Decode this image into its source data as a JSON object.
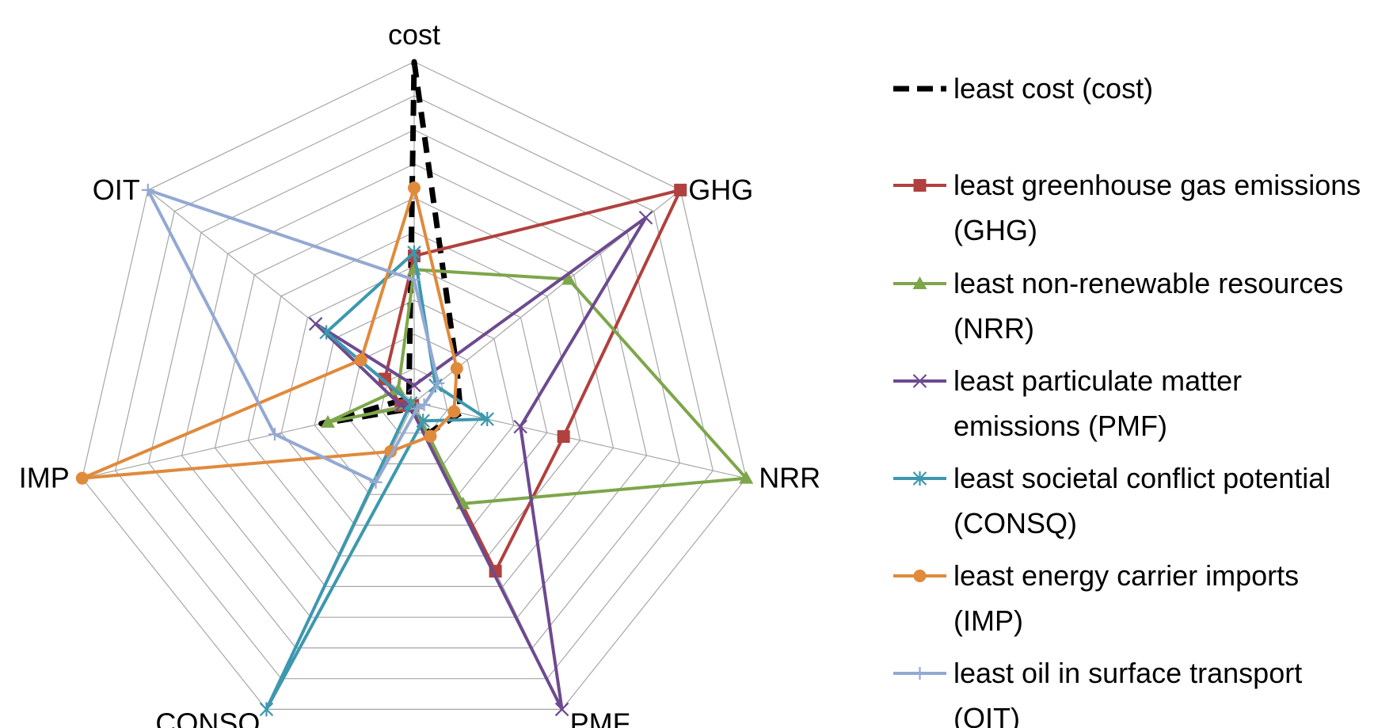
{
  "chart_data": {
    "type": "radar",
    "axes": [
      "cost",
      "GHG",
      "NRR",
      "PMF",
      "CONSQ",
      "IMP",
      "OIT"
    ],
    "rmax": 10,
    "grid_rings": 10,
    "grid": true,
    "legend_position": "right",
    "series": [
      {
        "name": "least cost (cost)",
        "color": "#000000",
        "marker": "none",
        "dash": true,
        "values": [
          10,
          1.6,
          1.4,
          1.0,
          0.2,
          2.8,
          0.2
        ]
      },
      {
        "name": "least greenhouse gas emissions (GHG)",
        "color": "#b0413e",
        "marker": "square",
        "dash": false,
        "values": [
          4.3,
          10,
          4.5,
          5.5,
          0.1,
          0.4,
          1.1
        ]
      },
      {
        "name": "least non-renewable resources (NRR)",
        "color": "#7da64a",
        "marker": "triangle",
        "dash": false,
        "values": [
          3.9,
          5.8,
          10,
          3.3,
          0.1,
          2.6,
          0.6
        ]
      },
      {
        "name": "least particulate matter emissions (PMF)",
        "color": "#6d4a8f",
        "marker": "x",
        "dash": false,
        "values": [
          0.5,
          8.7,
          3.2,
          10,
          0.2,
          0.4,
          3.7
        ]
      },
      {
        "name": "least societal conflict potential (CONSQ)",
        "color": "#3d98ae",
        "marker": "star",
        "dash": false,
        "values": [
          4.4,
          0.8,
          2.2,
          0.6,
          10,
          0.1,
          3.3
        ]
      },
      {
        "name": "least energy carrier imports (IMP)",
        "color": "#e08a3c",
        "marker": "circle",
        "dash": false,
        "values": [
          6.3,
          1.6,
          1.2,
          1.1,
          1.6,
          10,
          2.0
        ]
      },
      {
        "name": "least  oil in surface transport (OIT)",
        "color": "#93a9d3",
        "marker": "plus",
        "dash": false,
        "values": [
          3.6,
          0.9,
          0.3,
          0.2,
          2.6,
          4.2,
          10
        ]
      }
    ]
  }
}
